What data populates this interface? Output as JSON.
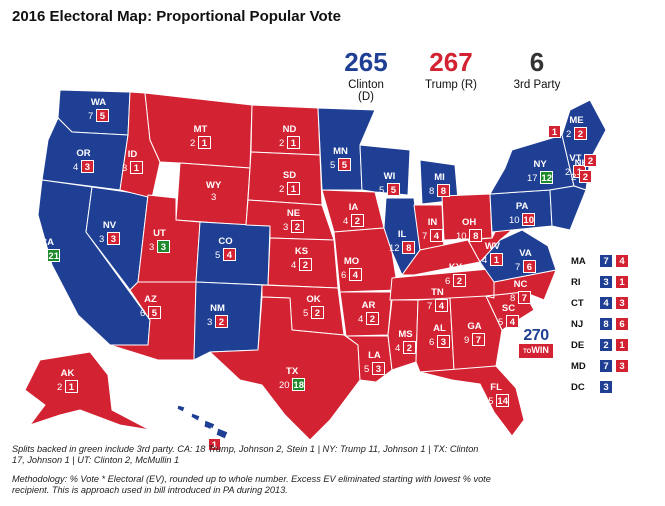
{
  "title": "2016 Electoral Map:  Proportional Popular Vote",
  "tallies": [
    {
      "value": "265",
      "label": "Clinton (D)",
      "color": "#1f3f94"
    },
    {
      "value": "267",
      "label": "Trump (R)",
      "color": "#d32232"
    },
    {
      "value": "6",
      "label": "3rd Party",
      "color": "#333333"
    }
  ],
  "colors": {
    "dem": "#1f3f94",
    "rep": "#d32232",
    "third": "#1f8a2c"
  },
  "states": [
    {
      "abbr": "WA",
      "d": "7",
      "r": "5"
    },
    {
      "abbr": "OR",
      "d": "4",
      "r": "3"
    },
    {
      "abbr": "CA",
      "d": "34",
      "g": "21"
    },
    {
      "abbr": "NV",
      "d": "3",
      "r": "3"
    },
    {
      "abbr": "ID",
      "d": "3",
      "r": "1"
    },
    {
      "abbr": "MT",
      "d": "2",
      "r": "1"
    },
    {
      "abbr": "WY",
      "d": "3"
    },
    {
      "abbr": "UT",
      "d": "3",
      "g": "3"
    },
    {
      "abbr": "AZ",
      "d": "6",
      "r": "5"
    },
    {
      "abbr": "CO",
      "d": "5",
      "r": "4"
    },
    {
      "abbr": "NM",
      "d": "3",
      "r": "2"
    },
    {
      "abbr": "ND",
      "d": "2",
      "r": "1"
    },
    {
      "abbr": "SD",
      "d": "2",
      "r": "1"
    },
    {
      "abbr": "NE",
      "d": "3",
      "r": "2"
    },
    {
      "abbr": "KS",
      "d": "4",
      "r": "2"
    },
    {
      "abbr": "OK",
      "d": "5",
      "r": "2"
    },
    {
      "abbr": "TX",
      "d": "20",
      "g": "18"
    },
    {
      "abbr": "MN",
      "d": "5",
      "r": "5"
    },
    {
      "abbr": "IA",
      "d": "4",
      "r": "2"
    },
    {
      "abbr": "MO",
      "d": "6",
      "r": "4"
    },
    {
      "abbr": "AR",
      "d": "4",
      "r": "2"
    },
    {
      "abbr": "LA",
      "d": "5",
      "r": "3"
    },
    {
      "abbr": "WI",
      "d": "5",
      "r": "5"
    },
    {
      "abbr": "IL",
      "d": "12",
      "r": "8"
    },
    {
      "abbr": "MI",
      "d": "8",
      "r": "8"
    },
    {
      "abbr": "IN",
      "d": "7",
      "r": "4"
    },
    {
      "abbr": "OH",
      "d": "10",
      "r": "8"
    },
    {
      "abbr": "KY",
      "d": "6",
      "r": "2"
    },
    {
      "abbr": "TN",
      "d": "7",
      "r": "4"
    },
    {
      "abbr": "MS",
      "d": "4",
      "r": "2"
    },
    {
      "abbr": "AL",
      "d": "6",
      "r": "3"
    },
    {
      "abbr": "GA",
      "d": "9",
      "r": "7"
    },
    {
      "abbr": "FL",
      "d": "15",
      "r": "14"
    },
    {
      "abbr": "SC",
      "d": "5",
      "r": "4"
    },
    {
      "abbr": "NC",
      "d": "8",
      "r": "7"
    },
    {
      "abbr": "VA",
      "d": "7",
      "r": "6"
    },
    {
      "abbr": "WV",
      "d": "4",
      "r": "1"
    },
    {
      "abbr": "PA",
      "d": "10",
      "r": "10"
    },
    {
      "abbr": "NY",
      "d": "17",
      "g": "12"
    },
    {
      "abbr": "VT",
      "d": "2",
      "r": "1"
    },
    {
      "abbr": "NH",
      "d": "2",
      "r": "2"
    },
    {
      "abbr": "ME",
      "d": "2",
      "r": "2"
    },
    {
      "abbr": "AK",
      "d": "2",
      "r": "1"
    },
    {
      "abbr": "HI",
      "d": "3",
      "r": "1"
    }
  ],
  "small_states": [
    {
      "abbr": "MA",
      "d": "7",
      "r": "4"
    },
    {
      "abbr": "RI",
      "d": "3",
      "r": "1"
    },
    {
      "abbr": "CT",
      "d": "4",
      "r": "3"
    },
    {
      "abbr": "NJ",
      "d": "8",
      "r": "6"
    },
    {
      "abbr": "DE",
      "d": "2",
      "r": "1"
    },
    {
      "abbr": "MD",
      "d": "7",
      "r": "3"
    },
    {
      "abbr": "DC",
      "d": "3"
    }
  ],
  "misc_boxes": [
    {
      "r": "1"
    },
    {
      "r": "2"
    }
  ],
  "logo": {
    "line1": "270",
    "line2": "WIN",
    "prefix": "TO"
  },
  "notes": {
    "splits": "Splits backed in green include 3rd party. CA: 18 Trump, Johnson 2, Stein 1 | NY: Trump 11, Johnson 1 | TX: Clinton 17, Johnson 1 | UT: Clinton 2, McMullin 1",
    "methodology": "Methodology: % Vote * Electoral (EV), rounded up to whole number. Excess EV eliminated starting with lowest % vote recipient. This is approach used in bill introduced in PA during 2013."
  }
}
